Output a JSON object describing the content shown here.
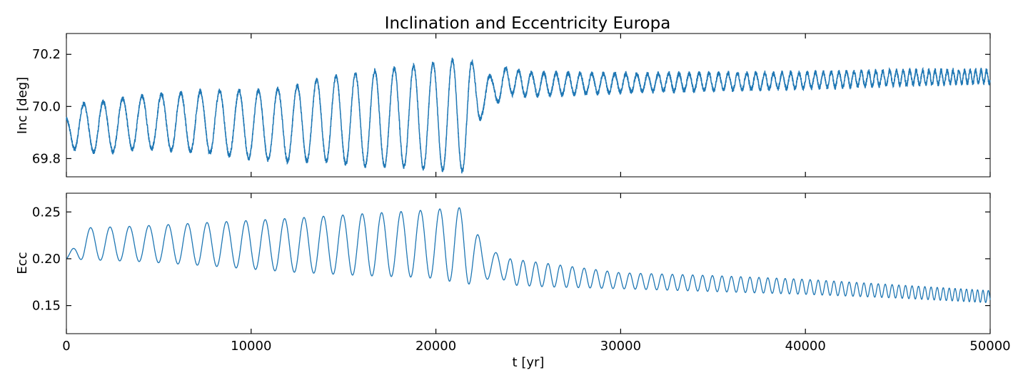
{
  "chart_data": [
    {
      "type": "line",
      "title": "Inclination and Eccentricity Europa",
      "xlabel": "",
      "ylabel": "Inc [deg]",
      "xlim": [
        0,
        50000
      ],
      "ylim": [
        69.73,
        70.28
      ],
      "yticks": [
        "69.8",
        "70.0",
        "70.2"
      ],
      "xtick_values": [
        0,
        10000,
        20000,
        30000,
        40000,
        50000
      ],
      "grid": false,
      "color": "#1f77b4",
      "description_points": {
        "t": [
          0,
          500,
          1000,
          2000,
          4000,
          6000,
          8000,
          10000,
          12000,
          14000,
          16000,
          18000,
          19500,
          20100,
          20800,
          21700,
          22500,
          23000,
          23800,
          25000,
          30000,
          35000,
          40000,
          45000,
          50000
        ],
        "center": [
          69.92,
          69.92,
          69.92,
          69.92,
          69.94,
          69.94,
          69.94,
          69.93,
          69.93,
          69.95,
          69.95,
          69.96,
          69.96,
          69.96,
          69.97,
          69.96,
          70.07,
          70.05,
          70.1,
          70.085,
          70.09,
          70.095,
          70.1,
          70.11,
          70.115
        ],
        "amplitude": [
          0.04,
          0.09,
          0.09,
          0.1,
          0.1,
          0.11,
          0.12,
          0.13,
          0.14,
          0.16,
          0.18,
          0.19,
          0.2,
          0.21,
          0.21,
          0.21,
          0.1,
          0.06,
          0.05,
          0.045,
          0.035,
          0.033,
          0.03,
          0.028,
          0.025
        ]
      }
    },
    {
      "type": "line",
      "title": "",
      "xlabel": "t [yr]",
      "ylabel": "Ecc",
      "xlim": [
        0,
        50000
      ],
      "ylim": [
        0.12,
        0.27
      ],
      "yticks": [
        "0.15",
        "0.20",
        "0.25"
      ],
      "xticks": [
        "0",
        "10000",
        "20000",
        "30000",
        "40000",
        "50000"
      ],
      "xtick_values": [
        0,
        10000,
        20000,
        30000,
        40000,
        50000
      ],
      "grid": false,
      "color": "#1f77b4",
      "description_points": {
        "t": [
          0,
          1000,
          4000,
          8000,
          12000,
          16000,
          19500,
          20100,
          21700,
          22500,
          23200,
          24000,
          26000,
          30000,
          35000,
          40000,
          45000,
          50000
        ],
        "max": [
          0.2,
          0.233,
          0.235,
          0.239,
          0.243,
          0.248,
          0.252,
          0.253,
          0.255,
          0.215,
          0.207,
          0.2,
          0.195,
          0.185,
          0.182,
          0.178,
          0.172,
          0.166
        ],
        "min": [
          0.2,
          0.199,
          0.197,
          0.192,
          0.186,
          0.182,
          0.18,
          0.178,
          0.173,
          0.173,
          0.185,
          0.172,
          0.17,
          0.168,
          0.165,
          0.162,
          0.158,
          0.153
        ]
      }
    }
  ]
}
